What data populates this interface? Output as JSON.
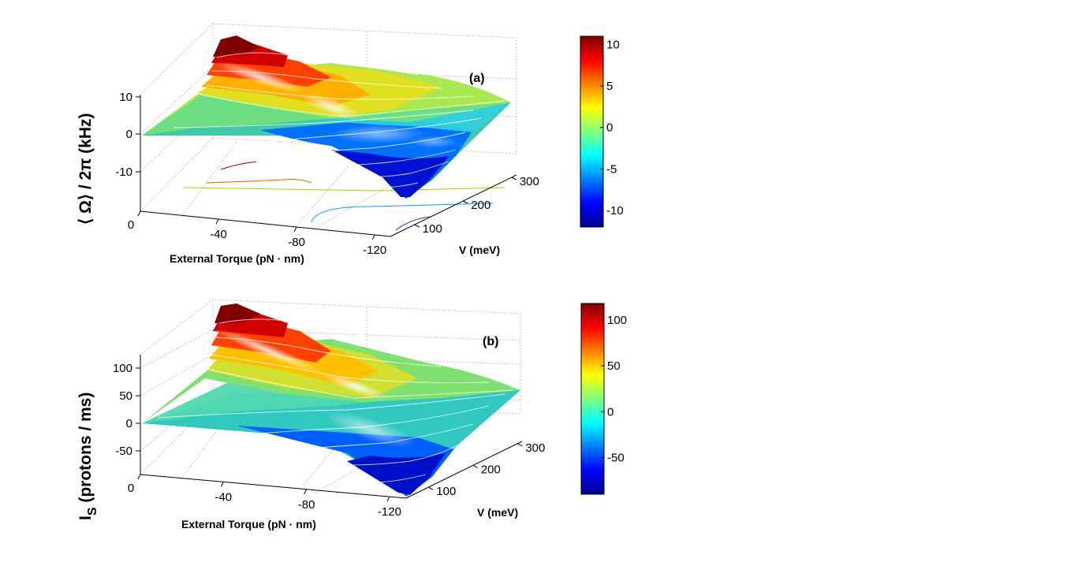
{
  "colormap": [
    "#00008f",
    "#0000ff",
    "#0080ff",
    "#00ffff",
    "#80ff80",
    "#ffff00",
    "#ff8000",
    "#ff0000",
    "#800000"
  ],
  "chart_data": [
    {
      "type": "surface",
      "panel_label": "(a)",
      "xlabel": "External Torque (pN · nm)",
      "ylabel": "V (meV)",
      "zlabel": "⟨ Ω⟩ / 2π  (kHz)",
      "x_ticks": [
        "0",
        "-40",
        "-80",
        "-120"
      ],
      "y_ticks": [
        "100",
        "200",
        "300"
      ],
      "z_ticks": [
        "10",
        "0",
        "-10"
      ],
      "xlim": [
        0,
        -130
      ],
      "ylim": [
        50,
        320
      ],
      "zlim": [
        -16,
        12
      ],
      "colorbar_ticks": [
        "10",
        "5",
        "0",
        "-5",
        "-10"
      ],
      "colorbar_range": [
        -12,
        11
      ],
      "grid": true,
      "contours": true
    },
    {
      "type": "surface",
      "panel_label": "(b)",
      "xlabel": "External Torque (pN · nm)",
      "ylabel": "V (meV)",
      "zlabel_main": "I",
      "zlabel_sub": "S",
      "zlabel_rest": "  (protons / ms)",
      "x_ticks": [
        "0",
        "-40",
        "-80",
        "-120"
      ],
      "y_ticks": [
        "100",
        "200",
        "300"
      ],
      "z_ticks": [
        "100",
        "50",
        "0",
        "-50"
      ],
      "xlim": [
        0,
        -130
      ],
      "ylim": [
        50,
        320
      ],
      "zlim": [
        -80,
        120
      ],
      "colorbar_ticks": [
        "100",
        "50",
        "0",
        "-50"
      ],
      "colorbar_range": [
        -90,
        118
      ],
      "grid": true,
      "contours": true
    }
  ]
}
